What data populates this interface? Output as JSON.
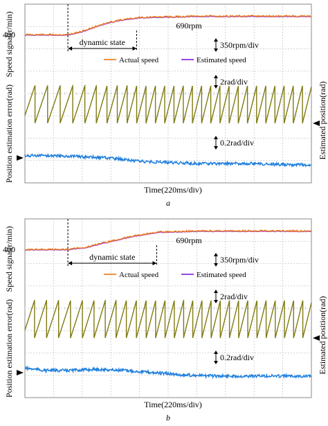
{
  "chart_data": [
    {
      "panel_label": "a",
      "type": "line",
      "xlabel": "Time(220ms/div)",
      "left_ylabel_top": "Speed signal(r/min)",
      "left_ylabel_bottom": "Position estimation error(rad)",
      "right_ylabel": "Estimated position(rad)",
      "speed_offset_label": "400",
      "annotations": {
        "final_speed": "690rpm",
        "transition": "dynamic state",
        "speed_scale": "350rpm/div",
        "position_scale": "2rad/div",
        "error_scale": "0.2rad/div"
      },
      "legend": [
        "Actual speed",
        "Estimated speed"
      ],
      "x_divisions": 10,
      "dynamic_state": {
        "start_div": 1.5,
        "end_div": 3.9
      },
      "series": [
        {
          "name": "Actual speed",
          "color": "#f08020",
          "x": [
            0,
            1.5,
            2.0,
            2.6,
            3.2,
            4.0,
            6.0,
            10.0
          ],
          "y": [
            400,
            400,
            450,
            550,
            620,
            670,
            690,
            690
          ]
        },
        {
          "name": "Estimated speed",
          "color": "#8a2be2",
          "x": [
            0,
            1.5,
            2.0,
            2.6,
            3.2,
            4.0,
            6.0,
            10.0
          ],
          "y": [
            400,
            400,
            450,
            550,
            620,
            670,
            690,
            690
          ]
        },
        {
          "name": "Estimated position",
          "color": "#7f7a10",
          "unit": "rad",
          "sawtooth_periods": [
            1.05,
            0.44,
            0.32
          ]
        },
        {
          "name": "Position estimation error",
          "color": "#1f7fdd",
          "unit": "rad",
          "x": [
            0,
            1,
            2,
            3,
            4,
            5,
            6,
            7,
            8,
            9,
            10
          ],
          "y": [
            0.02,
            0.02,
            0.01,
            0.0,
            -0.03,
            -0.04,
            -0.05,
            -0.05,
            -0.05,
            -0.06,
            -0.06
          ]
        }
      ]
    },
    {
      "panel_label": "b",
      "type": "line",
      "xlabel": "Time(220ms/div)",
      "left_ylabel_top": "Speed signal(r/min)",
      "left_ylabel_bottom": "Position estimation error(rad)",
      "right_ylabel": "Estimated position(rad)",
      "speed_offset_label": "400",
      "annotations": {
        "final_speed": "690rpm",
        "transition": "dynamic state",
        "speed_scale": "350rpm/div",
        "position_scale": "2rad/div",
        "error_scale": "0.2rad/div"
      },
      "legend": [
        "Actual speed",
        "Estimated speed"
      ],
      "x_divisions": 10,
      "dynamic_state": {
        "start_div": 1.5,
        "end_div": 4.6
      },
      "series": [
        {
          "name": "Actual speed",
          "color": "#f08020",
          "x": [
            0,
            1.5,
            2.2,
            3.0,
            3.8,
            4.6,
            6.0,
            10.0
          ],
          "y": [
            400,
            400,
            440,
            530,
            610,
            670,
            690,
            690
          ]
        },
        {
          "name": "Estimated speed",
          "color": "#8a2be2",
          "x": [
            0,
            1.5,
            2.2,
            3.0,
            3.8,
            4.6,
            6.0,
            10.0
          ],
          "y": [
            400,
            400,
            440,
            530,
            610,
            670,
            690,
            690
          ]
        },
        {
          "name": "Estimated position",
          "color": "#7f7a10",
          "unit": "rad",
          "sawtooth_periods": [
            0.95,
            0.42,
            0.32
          ]
        },
        {
          "name": "Position estimation error",
          "color": "#1f7fdd",
          "unit": "rad",
          "x": [
            0,
            0.7,
            1.5,
            2.5,
            3.5,
            4.5,
            5.5,
            6.5,
            7.5,
            8.5,
            10
          ],
          "y": [
            0.04,
            0.02,
            0.02,
            0.03,
            0.02,
            0.0,
            -0.02,
            -0.03,
            -0.03,
            -0.03,
            -0.03
          ]
        }
      ]
    }
  ],
  "colors": {
    "grid": "#c6c6c6",
    "frame": "#8a8a8a",
    "annotation": "#000000"
  }
}
